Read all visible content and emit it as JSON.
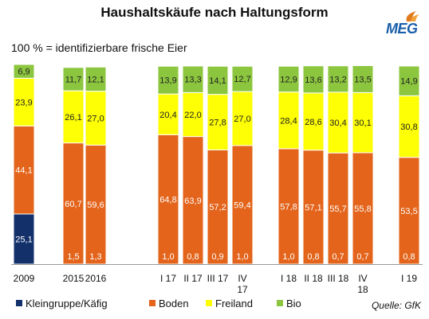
{
  "title": "Haushaltskäufe nach Haltungsform",
  "subtitle": "100 % = identifizierbare frische Eier",
  "logo": {
    "text": "MEG",
    "accent": "#e07b1f",
    "color": "#1b5faa"
  },
  "source": "Quelle: GfK",
  "chart_data": {
    "type": "bar",
    "stacked": true,
    "unit": "%",
    "categories": [
      "2009",
      "2015",
      "2016",
      "I 17",
      "II 17",
      "III 17",
      "IV\n17",
      "I 18",
      "II 18",
      "III 18",
      "IV\n18",
      "I 19"
    ],
    "series": [
      {
        "name": "Kleingruppe/Käfig",
        "color": "#13306b",
        "values": [
          25.1,
          0,
          0,
          0,
          0,
          0,
          0,
          0,
          0,
          0,
          0,
          0
        ],
        "labels": [
          "25,1",
          "",
          "",
          "",
          "",
          "",
          "",
          "",
          "",
          "",
          "",
          ""
        ]
      },
      {
        "name": "Boden",
        "color": "#e3641a",
        "values": [
          44.1,
          60.7,
          59.6,
          64.8,
          63.9,
          57.2,
          59.4,
          57.8,
          57.1,
          55.7,
          55.8,
          53.5
        ],
        "labels": [
          "44,1",
          "60,7",
          "59,6",
          "64,8",
          "63,9",
          "57,2",
          "59,4",
          "57,8",
          "57,1",
          "55,7",
          "55,8",
          "53,5"
        ]
      },
      {
        "name": "Freiland",
        "color": "#fefe04",
        "values": [
          23.9,
          26.1,
          27.0,
          20.4,
          22.0,
          27.8,
          27.0,
          28.4,
          28.6,
          30.4,
          30.1,
          30.8
        ],
        "labels": [
          "23,9",
          "26,1",
          "27,0",
          "20,4",
          "22,0",
          "27,8",
          "27,0",
          "28,4",
          "28,6",
          "30,4",
          "30,1",
          "30,8"
        ]
      },
      {
        "name": "Bio",
        "color": "#8cc63e",
        "values": [
          6.9,
          11.7,
          12.1,
          13.9,
          13.3,
          14.1,
          12.7,
          12.9,
          13.6,
          13.2,
          13.5,
          14.9
        ],
        "labels": [
          "6,9",
          "11,7",
          "12,1",
          "13,9",
          "13,3",
          "14,1",
          "12,7",
          "12,9",
          "13,6",
          "13,2",
          "13,5",
          "14,9"
        ]
      }
    ],
    "bottom_labels": [
      "",
      "1,5",
      "1,3",
      "1,0",
      "0,8",
      "0,9",
      "1,0",
      "1,0",
      "0,8",
      "0,7",
      "0,7",
      "0,8"
    ],
    "ylim": [
      0,
      100
    ],
    "grid": false,
    "legend": "bottom"
  }
}
